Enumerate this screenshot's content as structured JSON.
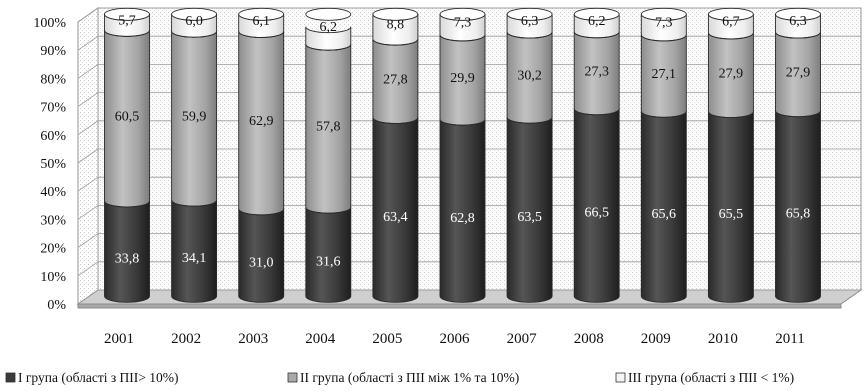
{
  "chart_data": {
    "type": "bar",
    "stacked": "percent",
    "style": "3d-cylinder",
    "categories": [
      "2001",
      "2002",
      "2003",
      "2004",
      "2005",
      "2006",
      "2007",
      "2008",
      "2009",
      "2010",
      "2011"
    ],
    "series": [
      {
        "name": "I група (області з ПІІ> 10%)",
        "values": [
          33.8,
          34.1,
          31.0,
          31.6,
          63.4,
          62.8,
          63.5,
          66.5,
          65.6,
          65.5,
          65.8
        ],
        "labels": [
          "33,8",
          "34,1",
          "31,0",
          "31,6",
          "63,4",
          "62,8",
          "63,5",
          "66,5",
          "65,6",
          "65,5",
          "65,8"
        ],
        "color": "#3a3a3a"
      },
      {
        "name": "II група (області з ПІІ між 1% та 10%)",
        "values": [
          60.5,
          59.9,
          62.9,
          57.8,
          27.8,
          29.9,
          30.2,
          27.3,
          27.1,
          27.9,
          27.9
        ],
        "labels": [
          "60,5",
          "59,9",
          "62,9",
          "57,8",
          "27,8",
          "29,9",
          "30,2",
          "27,3",
          "27,1",
          "27,9",
          "27,9"
        ],
        "color": "#a9a9a9"
      },
      {
        "name": "III група (області з ПІІ < 1%)",
        "values": [
          5.7,
          6.0,
          6.1,
          6.2,
          8.8,
          7.3,
          6.3,
          6.2,
          7.3,
          6.7,
          6.3
        ],
        "labels": [
          "5,7",
          "6,0",
          "6,1",
          "6,2",
          "8,8",
          "7,3",
          "6,3",
          "6,2",
          "7,3",
          "6,7",
          "6,3"
        ],
        "color": "#f4f4f4"
      }
    ],
    "y_ticks": [
      "0%",
      "10%",
      "20%",
      "30%",
      "40%",
      "50%",
      "60%",
      "70%",
      "80%",
      "90%",
      "100%"
    ],
    "ylim": [
      0,
      100
    ],
    "grid": true,
    "legend_position": "bottom"
  }
}
